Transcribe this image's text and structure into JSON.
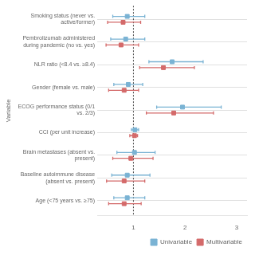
{
  "chart_data": {
    "type": "forest",
    "ylabel": "Variable",
    "categories": [
      "Smoking status (never vs. active/former)",
      "Pembrolizumab administered during pandemic (no vs. yes)",
      "NLR ratio (<8.4 vs. ≥8.4)",
      "Gender (female vs. male)",
      "ECOG performance status (0/1 vs. 2/3)",
      "CCI (per unit increase)",
      "Brain metastases (absent vs. present)",
      "Baseline autoimmune disease (absent vs. present)",
      "Age (<75 years vs. ≥75)"
    ],
    "series": [
      {
        "name": "Univariable",
        "color": "#7ab3d4",
        "marker": "square",
        "values": [
          0.88,
          0.85,
          1.75,
          0.9,
          1.95,
          1.03,
          1.02,
          0.88,
          0.88
        ],
        "ci_low": [
          0.6,
          0.56,
          1.3,
          0.62,
          1.45,
          0.96,
          0.68,
          0.58,
          0.62
        ],
        "ci_high": [
          1.22,
          1.22,
          2.35,
          1.18,
          2.7,
          1.1,
          1.42,
          1.32,
          1.22
        ]
      },
      {
        "name": "Multivariable",
        "color": "#d46a6a",
        "marker": "square",
        "values": [
          0.8,
          0.76,
          1.58,
          0.82,
          1.78,
          1.02,
          0.95,
          0.82,
          0.82
        ],
        "ci_low": [
          0.5,
          0.47,
          1.12,
          0.52,
          1.25,
          0.93,
          0.6,
          0.48,
          0.52
        ],
        "ci_high": [
          1.14,
          1.1,
          2.18,
          1.1,
          2.55,
          1.08,
          1.38,
          1.22,
          1.15
        ]
      }
    ],
    "ref_line": 1.0,
    "xlim": [
      0.3,
      3.2
    ],
    "xticks": [
      1.0,
      2.0,
      3.0
    ],
    "grid": true,
    "legend": "lower right"
  }
}
